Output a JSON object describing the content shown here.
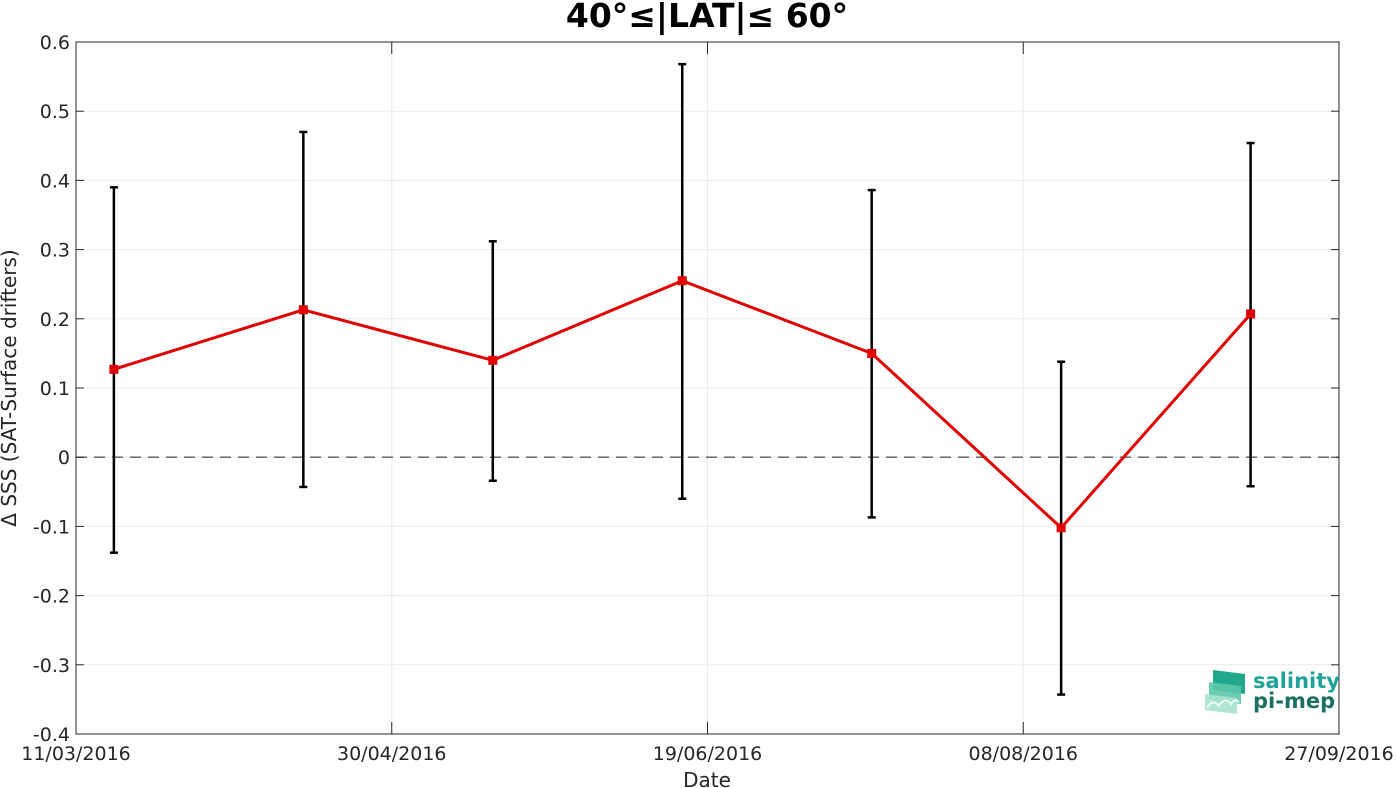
{
  "chart_data": {
    "type": "line",
    "title": "40°≤|LAT|≤ 60°",
    "xlabel": "Date",
    "ylabel": "Δ SSS (SAT-Surface drifters)",
    "x_tick_labels": [
      "11/03/2016",
      "30/04/2016",
      "19/06/2016",
      "08/08/2016",
      "27/09/2016"
    ],
    "y_tick_labels": [
      "0.6",
      "0.5",
      "0.4",
      "0.3",
      "0.2",
      "0.1",
      "0",
      "-0.1",
      "-0.2",
      "-0.3",
      "-0.4"
    ],
    "xlim": [
      "2016-03-11",
      "2016-09-27"
    ],
    "ylim": [
      -0.4,
      0.6
    ],
    "grid": true,
    "reference_line": {
      "y": 0,
      "style": "dashed",
      "color": "#595959"
    },
    "series": [
      {
        "color": "#e00000",
        "marker": "square",
        "x": [
          "2016-03-17",
          "2016-04-16",
          "2016-05-16",
          "2016-06-15",
          "2016-07-15",
          "2016-08-14",
          "2016-09-13"
        ],
        "y": [
          0.127,
          0.213,
          0.14,
          0.255,
          0.15,
          -0.102,
          0.207
        ],
        "error_low": [
          -0.138,
          -0.043,
          -0.034,
          -0.06,
          -0.087,
          -0.343,
          -0.042
        ],
        "error_high": [
          0.39,
          0.47,
          0.312,
          0.568,
          0.386,
          0.138,
          0.454
        ],
        "error_color": "#000000"
      }
    ]
  },
  "logo": {
    "line1": "salinity",
    "line2": "pi-mep"
  }
}
